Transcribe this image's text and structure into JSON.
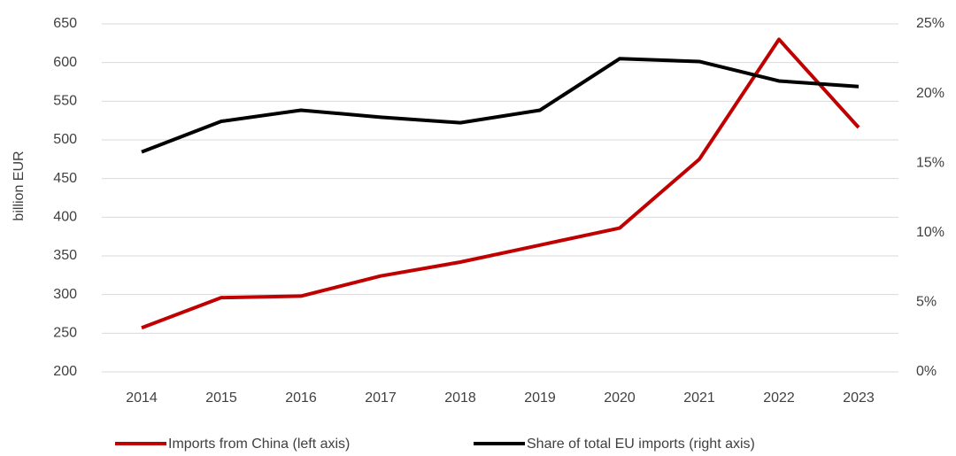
{
  "chart_data": {
    "type": "line",
    "y_label": "billion EUR",
    "categories": [
      "2014",
      "2015",
      "2016",
      "2017",
      "2018",
      "2019",
      "2020",
      "2021",
      "2022",
      "2023"
    ],
    "series": [
      {
        "name": "Imports from China (left axis)",
        "color": "#c00000",
        "values": [
          257,
          296,
          298,
          324,
          342,
          364,
          386,
          475,
          630,
          516
        ]
      },
      {
        "name": "Share of total EU imports (right axis)",
        "color": "#000000",
        "axis": "y2",
        "values": [
          15.8,
          18.0,
          18.8,
          18.3,
          17.9,
          18.8,
          22.5,
          22.3,
          20.9,
          20.5
        ]
      }
    ],
    "ylim": [
      200,
      650
    ],
    "yticks": [
      200,
      250,
      300,
      350,
      400,
      450,
      500,
      550,
      600,
      650
    ],
    "y2lim": [
      0,
      25
    ],
    "y2ticks": [
      {
        "value": 0,
        "label": "0%"
      },
      {
        "value": 5,
        "label": "5%"
      },
      {
        "value": 10,
        "label": "10%"
      },
      {
        "value": 15,
        "label": "15%"
      },
      {
        "value": 20,
        "label": "20%"
      },
      {
        "value": 25,
        "label": "25%"
      }
    ],
    "grid": true,
    "legend": "bottom"
  }
}
